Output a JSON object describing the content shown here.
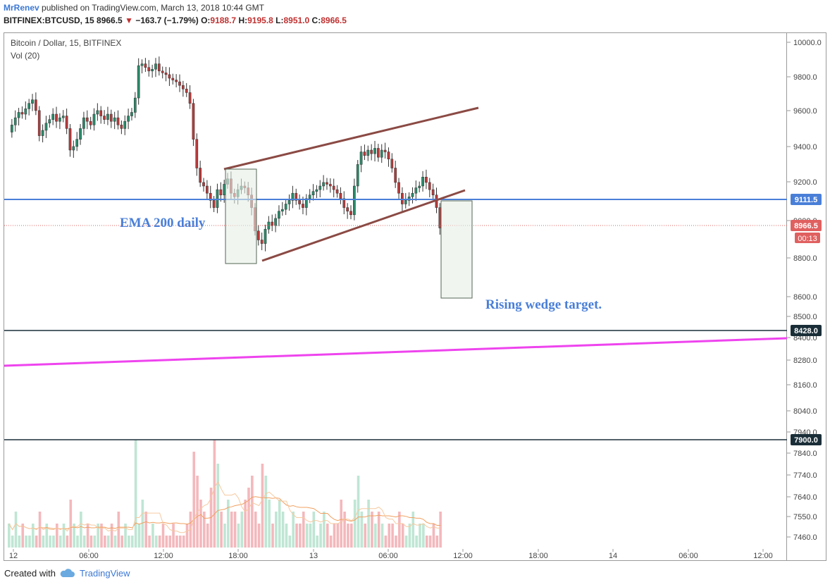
{
  "header": {
    "author": "MrRenev",
    "published": "published on TradingView.com, March 13, 2018 10:44 GMT"
  },
  "ohlc": {
    "symbol": "BITFINEX:BTCUSD, 15",
    "last": "8966.5",
    "change": "−163.7 (−1.79%)",
    "o_label": "O:",
    "o": "9188.7",
    "h_label": "H:",
    "h": "9195.8",
    "l_label": "L:",
    "l": "8951.0",
    "c_label": "C:",
    "c": "8966.5"
  },
  "legend": {
    "title": "Bitcoin / Dollar, 15, BITFINEX",
    "volume": "Vol (20)"
  },
  "footer": {
    "created_with": "Created with",
    "brand": "TradingView"
  },
  "chart_data": {
    "type": "candlestick",
    "title": "Bitcoin / Dollar, 15, BITFINEX",
    "y_ticks": [
      "10000.0",
      "9800.0",
      "9600.0",
      "9400.0",
      "9200.0",
      "9000.0",
      "8800.0",
      "8600.0",
      "8500.0",
      "8400.0",
      "8280.0",
      "8160.0",
      "8040.0",
      "7940.0",
      "7840.0",
      "7740.0",
      "7640.0",
      "7550.0",
      "7460.0"
    ],
    "x_ticks": [
      "12",
      "06:00",
      "12:00",
      "18:00",
      "13",
      "06:00",
      "12:00",
      "18:00",
      "14",
      "06:00",
      "12:00"
    ],
    "price_path": [
      9500,
      9540,
      9580,
      9610,
      9600,
      9630,
      9660,
      9680,
      9620,
      9480,
      9510,
      9550,
      9570,
      9600,
      9560,
      9580,
      9590,
      9520,
      9400,
      9420,
      9460,
      9520,
      9580,
      9560,
      9540,
      9600,
      9620,
      9590,
      9570,
      9600,
      9560,
      9580,
      9540,
      9520,
      9560,
      9590,
      9610,
      9690,
      9870,
      9880,
      9860,
      9840,
      9850,
      9880,
      9840,
      9830,
      9820,
      9800,
      9790,
      9780,
      9760,
      9740,
      9720,
      9660,
      9460,
      9300,
      9220,
      9200,
      9160,
      9120,
      9080,
      9180,
      9150,
      9210,
      9240,
      9160,
      9140,
      9180,
      9200,
      9190,
      9150,
      9080,
      8950,
      8900,
      8880,
      8960,
      9000,
      8980,
      9020,
      9060,
      9070,
      9100,
      9120,
      9160,
      9120,
      9100,
      9080,
      9130,
      9150,
      9170,
      9180,
      9200,
      9220,
      9210,
      9200,
      9180,
      9160,
      9130,
      9080,
      9060,
      9040,
      9200,
      9320,
      9390,
      9370,
      9400,
      9380,
      9410,
      9360,
      9400,
      9390,
      9350,
      9300,
      9220,
      9160,
      9100,
      9120,
      9140,
      9160,
      9190,
      9200,
      9250,
      9220,
      9180,
      9150,
      9080,
      8966.5
    ],
    "levels": [
      {
        "label": "9111.5",
        "price": 9111.5,
        "color": "#4a7fd8"
      },
      {
        "label": "8966.5",
        "price": 8966.5,
        "color": "#e06060"
      },
      {
        "label": "8428.0",
        "price": 8428.0,
        "color": "#1a2e38"
      },
      {
        "label": "7900.0",
        "price": 7900.0,
        "color": "#1a2e38"
      }
    ],
    "countdown": "00:13",
    "annotations": {
      "ema": "EMA 200 daily",
      "target": "Rising wedge target."
    },
    "volume_series": "Vol (20)",
    "volume": [
      2,
      1,
      3,
      1,
      2,
      1,
      1,
      2,
      1,
      3,
      1,
      2,
      1,
      1,
      2,
      1,
      2,
      1,
      4,
      2,
      1,
      3,
      1,
      2,
      1,
      1,
      2,
      2,
      1,
      1,
      2,
      1,
      3,
      1,
      2,
      1,
      1,
      9,
      2,
      4,
      3,
      1,
      2,
      1,
      1,
      2,
      1,
      1,
      2,
      1,
      1,
      1,
      2,
      3,
      8,
      6,
      4,
      3,
      2,
      5,
      9,
      7,
      3,
      2,
      4,
      3,
      3,
      2,
      3,
      4,
      5,
      6,
      3,
      2,
      7,
      6,
      4,
      2,
      3,
      4,
      3,
      2,
      1,
      3,
      2,
      2,
      3,
      2,
      2,
      3,
      1,
      2,
      3,
      2,
      1,
      2,
      2,
      4,
      3,
      2,
      2,
      4,
      6,
      3,
      2,
      4,
      3,
      2,
      3,
      2,
      1,
      2,
      2,
      1,
      3,
      2,
      1,
      2,
      3,
      1,
      2,
      2,
      1,
      1,
      2,
      1,
      3
    ]
  }
}
